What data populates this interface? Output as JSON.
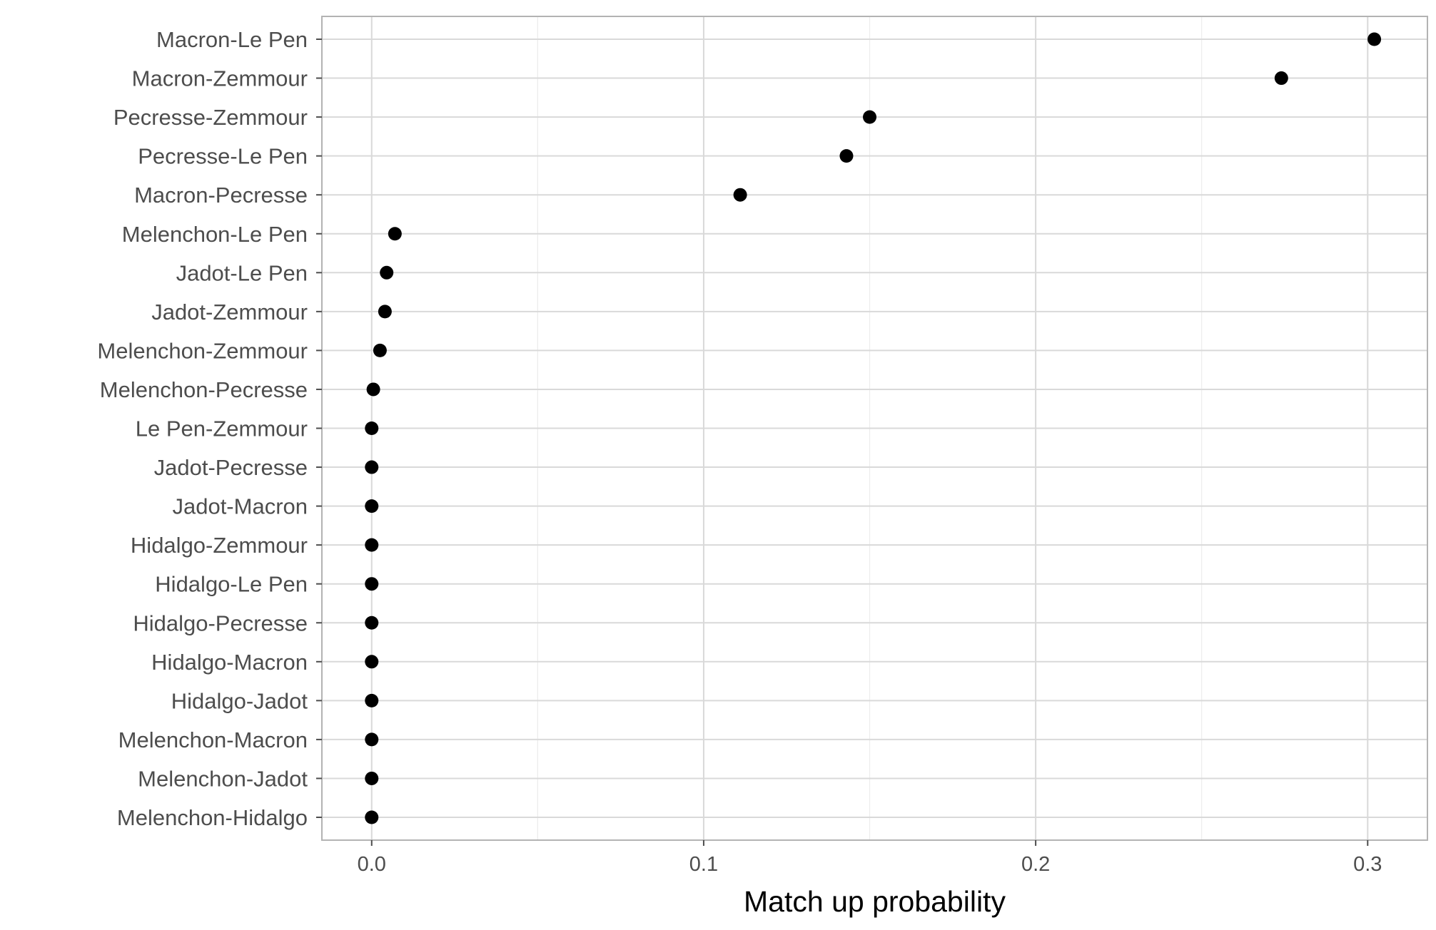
{
  "chart_data": {
    "type": "scatter",
    "title": "",
    "xlabel": "Match up probability",
    "ylabel": "",
    "xlim": [
      -0.015,
      0.318
    ],
    "x_ticks": [
      0.0,
      0.1,
      0.2,
      0.3
    ],
    "x_tick_labels": [
      "0.0",
      "0.1",
      "0.2",
      "0.3"
    ],
    "x_minor_ticks": [
      0.05,
      0.15,
      0.25
    ],
    "grid": true,
    "legend": "none",
    "point_color": "#000000",
    "grid_color": "#d9d9d9",
    "panel_border_color": "#b3b3b3",
    "categories": [
      "Macron-Le Pen",
      "Macron-Zemmour",
      "Pecresse-Zemmour",
      "Pecresse-Le Pen",
      "Macron-Pecresse",
      "Melenchon-Le Pen",
      "Jadot-Le Pen",
      "Jadot-Zemmour",
      "Melenchon-Zemmour",
      "Melenchon-Pecresse",
      "Le Pen-Zemmour",
      "Jadot-Pecresse",
      "Jadot-Macron",
      "Hidalgo-Zemmour",
      "Hidalgo-Le Pen",
      "Hidalgo-Pecresse",
      "Hidalgo-Macron",
      "Hidalgo-Jadot",
      "Melenchon-Macron",
      "Melenchon-Jadot",
      "Melenchon-Hidalgo"
    ],
    "values": [
      0.302,
      0.274,
      0.15,
      0.143,
      0.111,
      0.007,
      0.0045,
      0.004,
      0.0025,
      0.0005,
      0.0,
      0.0,
      0.0,
      0.0,
      0.0,
      0.0,
      0.0,
      0.0,
      0.0,
      0.0,
      0.0
    ]
  }
}
